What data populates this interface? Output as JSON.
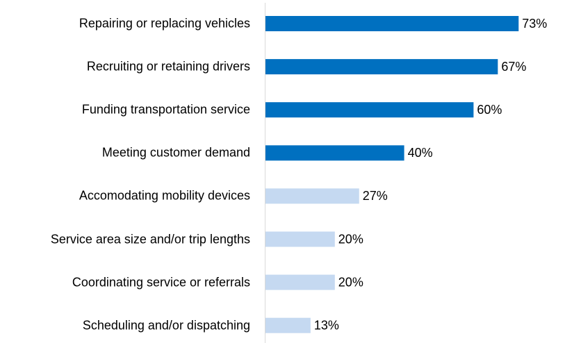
{
  "chart_data": {
    "type": "bar",
    "orientation": "horizontal",
    "categories": [
      "Repairing or replacing vehicles",
      "Recruiting or retaining drivers",
      "Funding transportation service",
      "Meeting customer demand",
      "Accomodating mobility devices",
      "Service area size and/or trip lengths",
      "Coordinating service or referrals",
      "Scheduling and/or dispatching"
    ],
    "values": [
      73,
      67,
      60,
      40,
      27,
      20,
      20,
      13
    ],
    "value_labels": [
      "73%",
      "67%",
      "60%",
      "40%",
      "27%",
      "20%",
      "20%",
      "13%"
    ],
    "colors": [
      "#0070c0",
      "#0070c0",
      "#0070c0",
      "#0070c0",
      "#c5d9f1",
      "#c5d9f1",
      "#c5d9f1",
      "#c5d9f1"
    ]
  }
}
